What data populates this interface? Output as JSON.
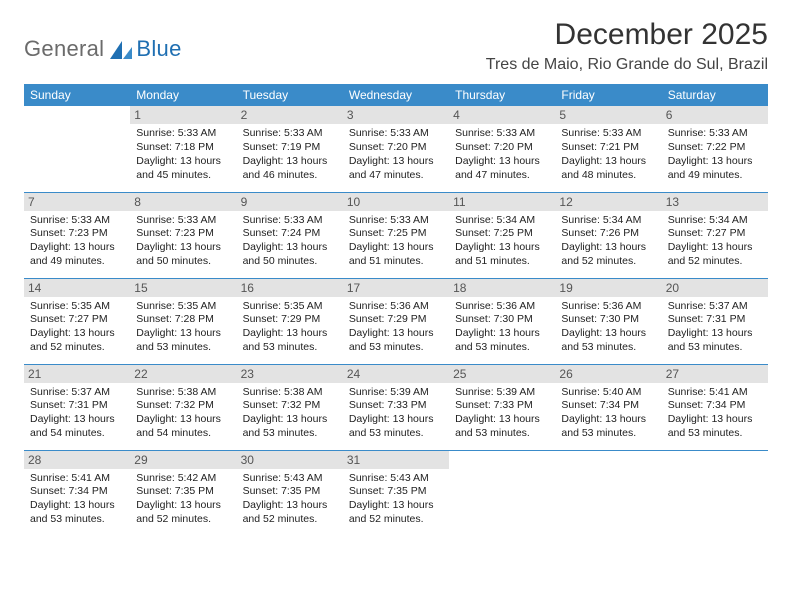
{
  "logo": {
    "text1": "General",
    "text2": "Blue"
  },
  "header": {
    "month_title": "December 2025",
    "location": "Tres de Maio, Rio Grande do Sul, Brazil"
  },
  "colors": {
    "header_bg": "#3a8bc9",
    "header_text": "#ffffff",
    "daynum_bg": "#e3e3e3",
    "border": "#3a8bc9",
    "logo_gray": "#6b6b6b",
    "logo_blue": "#1f6fb2"
  },
  "weekdays": [
    "Sunday",
    "Monday",
    "Tuesday",
    "Wednesday",
    "Thursday",
    "Friday",
    "Saturday"
  ],
  "weeks": [
    [
      null,
      {
        "n": "1",
        "sr": "Sunrise: 5:33 AM",
        "ss": "Sunset: 7:18 PM",
        "dl": "Daylight: 13 hours and 45 minutes."
      },
      {
        "n": "2",
        "sr": "Sunrise: 5:33 AM",
        "ss": "Sunset: 7:19 PM",
        "dl": "Daylight: 13 hours and 46 minutes."
      },
      {
        "n": "3",
        "sr": "Sunrise: 5:33 AM",
        "ss": "Sunset: 7:20 PM",
        "dl": "Daylight: 13 hours and 47 minutes."
      },
      {
        "n": "4",
        "sr": "Sunrise: 5:33 AM",
        "ss": "Sunset: 7:20 PM",
        "dl": "Daylight: 13 hours and 47 minutes."
      },
      {
        "n": "5",
        "sr": "Sunrise: 5:33 AM",
        "ss": "Sunset: 7:21 PM",
        "dl": "Daylight: 13 hours and 48 minutes."
      },
      {
        "n": "6",
        "sr": "Sunrise: 5:33 AM",
        "ss": "Sunset: 7:22 PM",
        "dl": "Daylight: 13 hours and 49 minutes."
      }
    ],
    [
      {
        "n": "7",
        "sr": "Sunrise: 5:33 AM",
        "ss": "Sunset: 7:23 PM",
        "dl": "Daylight: 13 hours and 49 minutes."
      },
      {
        "n": "8",
        "sr": "Sunrise: 5:33 AM",
        "ss": "Sunset: 7:23 PM",
        "dl": "Daylight: 13 hours and 50 minutes."
      },
      {
        "n": "9",
        "sr": "Sunrise: 5:33 AM",
        "ss": "Sunset: 7:24 PM",
        "dl": "Daylight: 13 hours and 50 minutes."
      },
      {
        "n": "10",
        "sr": "Sunrise: 5:33 AM",
        "ss": "Sunset: 7:25 PM",
        "dl": "Daylight: 13 hours and 51 minutes."
      },
      {
        "n": "11",
        "sr": "Sunrise: 5:34 AM",
        "ss": "Sunset: 7:25 PM",
        "dl": "Daylight: 13 hours and 51 minutes."
      },
      {
        "n": "12",
        "sr": "Sunrise: 5:34 AM",
        "ss": "Sunset: 7:26 PM",
        "dl": "Daylight: 13 hours and 52 minutes."
      },
      {
        "n": "13",
        "sr": "Sunrise: 5:34 AM",
        "ss": "Sunset: 7:27 PM",
        "dl": "Daylight: 13 hours and 52 minutes."
      }
    ],
    [
      {
        "n": "14",
        "sr": "Sunrise: 5:35 AM",
        "ss": "Sunset: 7:27 PM",
        "dl": "Daylight: 13 hours and 52 minutes."
      },
      {
        "n": "15",
        "sr": "Sunrise: 5:35 AM",
        "ss": "Sunset: 7:28 PM",
        "dl": "Daylight: 13 hours and 53 minutes."
      },
      {
        "n": "16",
        "sr": "Sunrise: 5:35 AM",
        "ss": "Sunset: 7:29 PM",
        "dl": "Daylight: 13 hours and 53 minutes."
      },
      {
        "n": "17",
        "sr": "Sunrise: 5:36 AM",
        "ss": "Sunset: 7:29 PM",
        "dl": "Daylight: 13 hours and 53 minutes."
      },
      {
        "n": "18",
        "sr": "Sunrise: 5:36 AM",
        "ss": "Sunset: 7:30 PM",
        "dl": "Daylight: 13 hours and 53 minutes."
      },
      {
        "n": "19",
        "sr": "Sunrise: 5:36 AM",
        "ss": "Sunset: 7:30 PM",
        "dl": "Daylight: 13 hours and 53 minutes."
      },
      {
        "n": "20",
        "sr": "Sunrise: 5:37 AM",
        "ss": "Sunset: 7:31 PM",
        "dl": "Daylight: 13 hours and 53 minutes."
      }
    ],
    [
      {
        "n": "21",
        "sr": "Sunrise: 5:37 AM",
        "ss": "Sunset: 7:31 PM",
        "dl": "Daylight: 13 hours and 54 minutes."
      },
      {
        "n": "22",
        "sr": "Sunrise: 5:38 AM",
        "ss": "Sunset: 7:32 PM",
        "dl": "Daylight: 13 hours and 54 minutes."
      },
      {
        "n": "23",
        "sr": "Sunrise: 5:38 AM",
        "ss": "Sunset: 7:32 PM",
        "dl": "Daylight: 13 hours and 53 minutes."
      },
      {
        "n": "24",
        "sr": "Sunrise: 5:39 AM",
        "ss": "Sunset: 7:33 PM",
        "dl": "Daylight: 13 hours and 53 minutes."
      },
      {
        "n": "25",
        "sr": "Sunrise: 5:39 AM",
        "ss": "Sunset: 7:33 PM",
        "dl": "Daylight: 13 hours and 53 minutes."
      },
      {
        "n": "26",
        "sr": "Sunrise: 5:40 AM",
        "ss": "Sunset: 7:34 PM",
        "dl": "Daylight: 13 hours and 53 minutes."
      },
      {
        "n": "27",
        "sr": "Sunrise: 5:41 AM",
        "ss": "Sunset: 7:34 PM",
        "dl": "Daylight: 13 hours and 53 minutes."
      }
    ],
    [
      {
        "n": "28",
        "sr": "Sunrise: 5:41 AM",
        "ss": "Sunset: 7:34 PM",
        "dl": "Daylight: 13 hours and 53 minutes."
      },
      {
        "n": "29",
        "sr": "Sunrise: 5:42 AM",
        "ss": "Sunset: 7:35 PM",
        "dl": "Daylight: 13 hours and 52 minutes."
      },
      {
        "n": "30",
        "sr": "Sunrise: 5:43 AM",
        "ss": "Sunset: 7:35 PM",
        "dl": "Daylight: 13 hours and 52 minutes."
      },
      {
        "n": "31",
        "sr": "Sunrise: 5:43 AM",
        "ss": "Sunset: 7:35 PM",
        "dl": "Daylight: 13 hours and 52 minutes."
      },
      null,
      null,
      null
    ]
  ]
}
